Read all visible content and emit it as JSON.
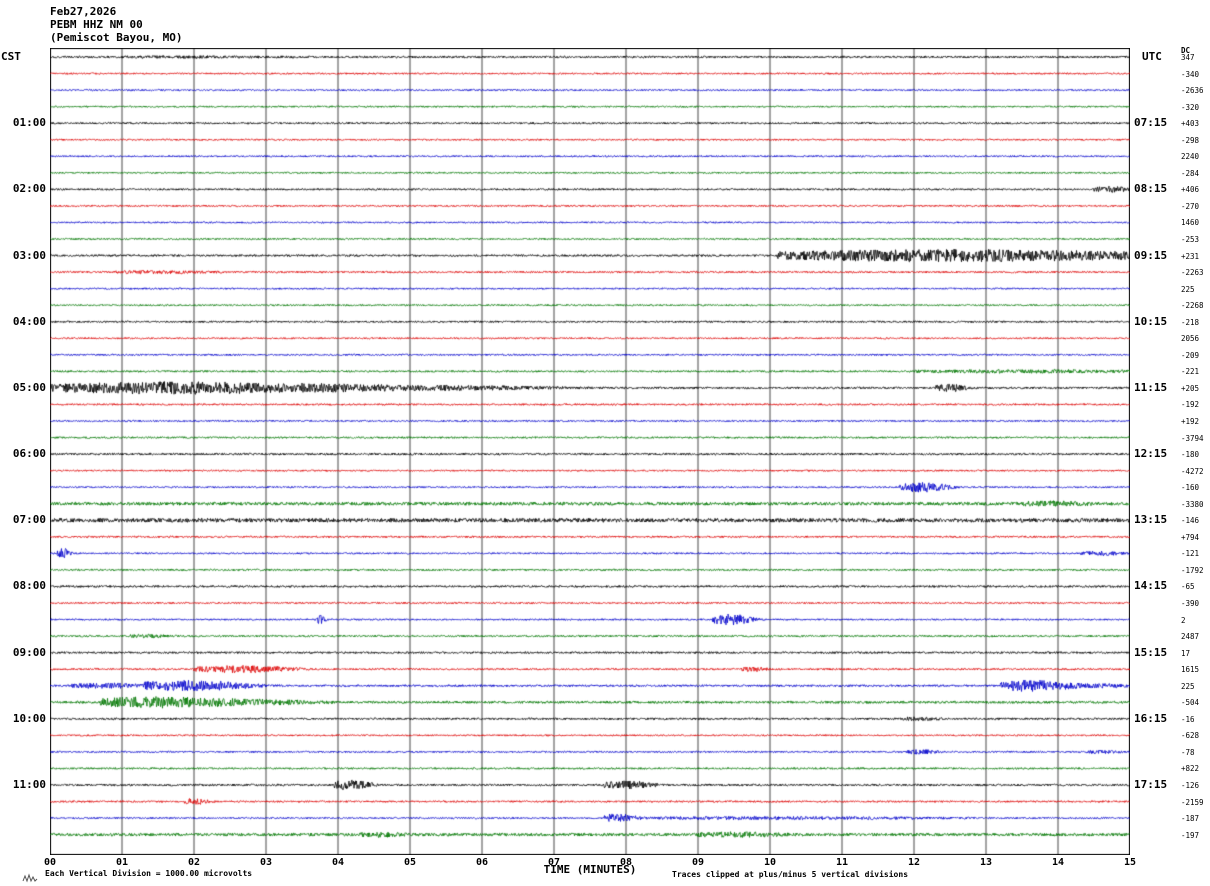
{
  "header": {
    "date": "Feb27,2026",
    "station": "PEBM HHZ NM 00",
    "location": "(Pemiscot Bayou, MO)"
  },
  "axes": {
    "left_title": "CST",
    "right_title": "UTC",
    "left_labels": [
      "01:00",
      "02:00",
      "03:00",
      "04:00",
      "05:00",
      "06:00",
      "07:00",
      "08:00",
      "09:00",
      "10:00",
      "11:00"
    ],
    "right_labels": [
      "07:15",
      "08:15",
      "09:15",
      "10:15",
      "11:15",
      "12:15",
      "13:15",
      "14:15",
      "15:15",
      "16:15",
      "17:15"
    ],
    "bottom_labels": [
      "00",
      "01",
      "02",
      "03",
      "04",
      "05",
      "06",
      "07",
      "08",
      "09",
      "10",
      "11",
      "12",
      "13",
      "14",
      "15"
    ],
    "xlabel": "TIME (MINUTES)"
  },
  "right_margin": {
    "header": "DC",
    "values": [
      "347",
      "-340",
      "-2636",
      "-320",
      "+403",
      "-298",
      "2240",
      "-284",
      "+406",
      "-270",
      "1460",
      "-253",
      "+231",
      "-2263",
      "225",
      "-2268",
      "-218",
      "2056",
      "-209",
      "-221",
      "+205",
      "-192",
      "+192",
      "-3794",
      "-180",
      "-4272",
      "-160",
      "-3380",
      "-146",
      "+794",
      "-121",
      "-1792",
      "-65",
      "-390",
      "2",
      "2487",
      "17",
      "1615",
      "225",
      "-504",
      "-16",
      "-628",
      "-78",
      "+822",
      "-126",
      "-2159",
      "-187",
      "-197"
    ]
  },
  "footer": {
    "left": "Each Vertical Division = 1000.00 microvolts",
    "right": "Traces clipped at plus/minus 5 vertical divisions"
  },
  "chart_data": {
    "type": "line",
    "subtype": "helicorder-seismogram",
    "title": "PEBM HHZ NM 00 (Pemiscot Bayou, MO) Feb27,2026",
    "xlabel": "TIME (MINUTES)",
    "x_range_minutes": [
      0,
      15
    ],
    "minutes_per_row": 15,
    "rows_per_hour": 4,
    "grid": true,
    "grid_color": "#444444",
    "color_cycle": [
      "black",
      "red",
      "blue",
      "green"
    ],
    "colors": {
      "black": "#000000",
      "red": "#dd0000",
      "blue": "#0000cc",
      "green": "#007700"
    },
    "rows": [
      {
        "a": 1.0,
        "e": [
          [
            1.0,
            2.0,
            0.5
          ]
        ]
      },
      {
        "a": 0.8
      },
      {
        "a": 0.8
      },
      {
        "a": 0.8
      },
      {
        "a": 0.9
      },
      {
        "a": 0.8
      },
      {
        "a": 0.8
      },
      {
        "a": 0.8
      },
      {
        "a": 0.9,
        "e": [
          [
            14.5,
            0.45,
            2.5
          ]
        ]
      },
      {
        "a": 0.8
      },
      {
        "a": 0.8
      },
      {
        "a": 0.8
      },
      {
        "a": 1.0,
        "e": [
          [
            10.1,
            4.9,
            5.5
          ]
        ]
      },
      {
        "a": 0.9,
        "e": [
          [
            0.9,
            1.2,
            1.0
          ]
        ]
      },
      {
        "a": 0.8
      },
      {
        "a": 0.8
      },
      {
        "a": 0.9
      },
      {
        "a": 0.8
      },
      {
        "a": 0.8
      },
      {
        "a": 0.9,
        "e": [
          [
            12.0,
            3.0,
            1.1
          ]
        ]
      },
      {
        "a": 1.0,
        "e": [
          [
            0.0,
            3.5,
            5.5
          ],
          [
            3.5,
            3.0,
            2.0
          ],
          [
            12.3,
            0.4,
            3.0
          ]
        ]
      },
      {
        "a": 0.9
      },
      {
        "a": 0.8
      },
      {
        "a": 0.9
      },
      {
        "a": 1.0
      },
      {
        "a": 0.8
      },
      {
        "a": 0.8,
        "e": [
          [
            11.8,
            0.6,
            4.5
          ]
        ]
      },
      {
        "a": 1.6,
        "e": [
          [
            13.5,
            0.8,
            1.5
          ]
        ]
      },
      {
        "a": 2.0
      },
      {
        "a": 0.9
      },
      {
        "a": 0.8,
        "e": [
          [
            0.1,
            0.15,
            5.0
          ],
          [
            14.3,
            0.6,
            1.8
          ]
        ]
      },
      {
        "a": 0.9
      },
      {
        "a": 1.0
      },
      {
        "a": 0.8
      },
      {
        "a": 0.8,
        "e": [
          [
            3.68,
            0.12,
            4.0
          ],
          [
            9.2,
            0.5,
            5.0
          ]
        ]
      },
      {
        "a": 0.9,
        "e": [
          [
            1.1,
            0.5,
            1.1
          ]
        ]
      },
      {
        "a": 1.0
      },
      {
        "a": 0.9,
        "e": [
          [
            2.0,
            1.2,
            3.0
          ],
          [
            9.6,
            0.3,
            2.0
          ]
        ]
      },
      {
        "a": 1.0,
        "e": [
          [
            0.3,
            0.9,
            2.0
          ],
          [
            1.3,
            1.3,
            4.5
          ],
          [
            13.2,
            0.8,
            5.0
          ],
          [
            14.0,
            1.0,
            1.5
          ]
        ]
      },
      {
        "a": 1.2,
        "e": [
          [
            0.7,
            1.5,
            5.0
          ],
          [
            2.2,
            1.3,
            2.0
          ]
        ]
      },
      {
        "a": 1.0,
        "e": [
          [
            11.8,
            0.5,
            1.2
          ]
        ]
      },
      {
        "a": 0.8
      },
      {
        "a": 0.8,
        "e": [
          [
            11.9,
            0.4,
            1.8
          ],
          [
            14.4,
            0.4,
            1.2
          ]
        ]
      },
      {
        "a": 0.9
      },
      {
        "a": 1.0,
        "e": [
          [
            3.95,
            0.45,
            4.5
          ],
          [
            7.7,
            0.6,
            3.5
          ]
        ]
      },
      {
        "a": 0.9,
        "e": [
          [
            1.85,
            0.3,
            2.5
          ]
        ]
      },
      {
        "a": 0.8,
        "e": [
          [
            7.7,
            0.35,
            4.0
          ],
          [
            8.1,
            3.9,
            1.0
          ]
        ]
      },
      {
        "a": 1.5,
        "e": [
          [
            4.3,
            0.5,
            1.5
          ],
          [
            9.0,
            1.0,
            1.5
          ]
        ]
      }
    ]
  }
}
